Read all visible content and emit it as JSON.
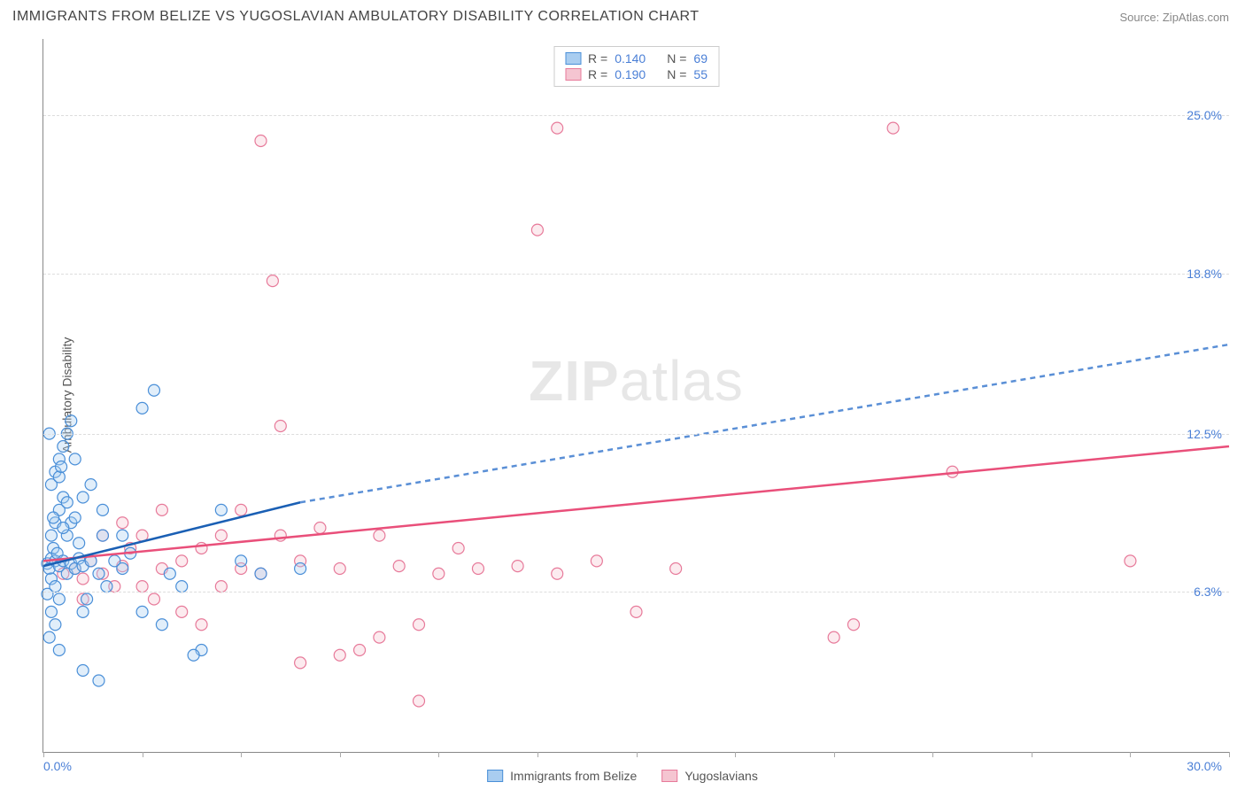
{
  "header": {
    "title": "IMMIGRANTS FROM BELIZE VS YUGOSLAVIAN AMBULATORY DISABILITY CORRELATION CHART",
    "source": "Source: ZipAtlas.com"
  },
  "chart": {
    "type": "scatter",
    "y_axis_label": "Ambulatory Disability",
    "watermark_bold": "ZIP",
    "watermark_light": "atlas",
    "background_color": "#ffffff",
    "grid_color": "#dddddd",
    "axis_color": "#888888",
    "tick_label_color": "#4a7fd6",
    "xlim": [
      0,
      30
    ],
    "ylim": [
      0,
      28
    ],
    "x_ticks": [
      0,
      2.5,
      5,
      7.5,
      10,
      12.5,
      15,
      17.5,
      20,
      22.5,
      25,
      27.5,
      30
    ],
    "x_tick_labels": {
      "0": "0.0%",
      "30": "30.0%"
    },
    "y_gridlines": [
      6.3,
      12.5,
      18.8,
      25.0
    ],
    "y_tick_labels": [
      "6.3%",
      "12.5%",
      "18.8%",
      "25.0%"
    ],
    "series": {
      "belize": {
        "label": "Immigrants from Belize",
        "fill": "#a9cdf0",
        "stroke": "#4a8fd8",
        "r_value": "0.140",
        "n_value": "69",
        "trend": {
          "solid": [
            [
              0,
              7.3
            ],
            [
              6.5,
              9.8
            ]
          ],
          "dashed": [
            [
              6.5,
              9.8
            ],
            [
              30,
              16.0
            ]
          ],
          "stroke": "#1a5fb4",
          "dash_stroke": "#5a8fd6"
        },
        "points": [
          [
            0.1,
            7.4
          ],
          [
            0.2,
            7.6
          ],
          [
            0.15,
            7.2
          ],
          [
            0.3,
            7.5
          ],
          [
            0.25,
            8.0
          ],
          [
            0.4,
            7.3
          ],
          [
            0.35,
            7.8
          ],
          [
            0.5,
            7.5
          ],
          [
            0.2,
            6.8
          ],
          [
            0.3,
            6.5
          ],
          [
            0.1,
            6.2
          ],
          [
            0.4,
            6.0
          ],
          [
            0.6,
            7.0
          ],
          [
            0.7,
            7.4
          ],
          [
            0.8,
            7.2
          ],
          [
            0.9,
            7.6
          ],
          [
            0.2,
            8.5
          ],
          [
            0.3,
            9.0
          ],
          [
            0.4,
            9.5
          ],
          [
            0.5,
            10.0
          ],
          [
            0.2,
            10.5
          ],
          [
            0.3,
            11.0
          ],
          [
            0.4,
            11.5
          ],
          [
            0.5,
            12.0
          ],
          [
            0.15,
            12.5
          ],
          [
            0.6,
            8.5
          ],
          [
            0.7,
            9.0
          ],
          [
            0.8,
            9.2
          ],
          [
            0.2,
            5.5
          ],
          [
            0.3,
            5.0
          ],
          [
            0.15,
            4.5
          ],
          [
            0.4,
            4.0
          ],
          [
            1.0,
            7.3
          ],
          [
            1.2,
            7.5
          ],
          [
            1.4,
            7.0
          ],
          [
            1.5,
            8.5
          ],
          [
            1.8,
            7.5
          ],
          [
            1.6,
            6.5
          ],
          [
            2.0,
            7.2
          ],
          [
            2.2,
            7.8
          ],
          [
            2.5,
            13.5
          ],
          [
            2.8,
            14.2
          ],
          [
            1.0,
            10.0
          ],
          [
            1.2,
            10.5
          ],
          [
            1.0,
            3.2
          ],
          [
            1.4,
            2.8
          ],
          [
            1.1,
            6.0
          ],
          [
            1.0,
            5.5
          ],
          [
            0.6,
            12.5
          ],
          [
            0.7,
            13.0
          ],
          [
            3.2,
            7.0
          ],
          [
            3.5,
            6.5
          ],
          [
            4.5,
            9.5
          ],
          [
            5.0,
            7.5
          ],
          [
            5.5,
            7.0
          ],
          [
            4.0,
            4.0
          ],
          [
            2.5,
            5.5
          ],
          [
            3.0,
            5.0
          ],
          [
            6.5,
            7.2
          ],
          [
            0.5,
            8.8
          ],
          [
            0.8,
            11.5
          ],
          [
            0.4,
            10.8
          ],
          [
            0.6,
            9.8
          ],
          [
            1.5,
            9.5
          ],
          [
            0.9,
            8.2
          ],
          [
            0.25,
            9.2
          ],
          [
            0.45,
            11.2
          ],
          [
            2.0,
            8.5
          ],
          [
            3.8,
            3.8
          ]
        ]
      },
      "yugo": {
        "label": "Yugoslavians",
        "fill": "#f5c5d1",
        "stroke": "#e77a9a",
        "r_value": "0.190",
        "n_value": "55",
        "trend": {
          "solid": [
            [
              0,
              7.5
            ],
            [
              30,
              12.0
            ]
          ],
          "stroke": "#e94f7a"
        },
        "points": [
          [
            0.5,
            7.0
          ],
          [
            0.8,
            7.2
          ],
          [
            1.0,
            6.8
          ],
          [
            1.2,
            7.5
          ],
          [
            1.5,
            7.0
          ],
          [
            1.8,
            6.5
          ],
          [
            2.0,
            7.3
          ],
          [
            2.2,
            8.0
          ],
          [
            2.5,
            8.5
          ],
          [
            2.8,
            6.0
          ],
          [
            3.0,
            7.2
          ],
          [
            3.5,
            7.5
          ],
          [
            4.0,
            8.0
          ],
          [
            4.5,
            6.5
          ],
          [
            5.0,
            7.2
          ],
          [
            5.5,
            7.0
          ],
          [
            6.0,
            8.5
          ],
          [
            6.5,
            7.5
          ],
          [
            7.0,
            8.8
          ],
          [
            7.5,
            7.2
          ],
          [
            8.0,
            4.0
          ],
          [
            8.5,
            8.5
          ],
          [
            9.0,
            7.3
          ],
          [
            9.5,
            5.0
          ],
          [
            10.0,
            7.0
          ],
          [
            10.5,
            8.0
          ],
          [
            11.0,
            7.2
          ],
          [
            12.0,
            7.3
          ],
          [
            13.0,
            7.0
          ],
          [
            14.0,
            7.5
          ],
          [
            15.0,
            5.5
          ],
          [
            16.0,
            7.2
          ],
          [
            9.5,
            2.0
          ],
          [
            12.5,
            20.5
          ],
          [
            13.0,
            24.5
          ],
          [
            5.5,
            24.0
          ],
          [
            5.8,
            18.5
          ],
          [
            6.0,
            12.8
          ],
          [
            7.5,
            3.8
          ],
          [
            4.0,
            5.0
          ],
          [
            3.5,
            5.5
          ],
          [
            6.5,
            3.5
          ],
          [
            1.5,
            8.5
          ],
          [
            2.0,
            9.0
          ],
          [
            5.0,
            9.5
          ],
          [
            21.5,
            24.5
          ],
          [
            20.0,
            4.5
          ],
          [
            20.5,
            5.0
          ],
          [
            23.0,
            11.0
          ],
          [
            27.5,
            7.5
          ],
          [
            3.0,
            9.5
          ],
          [
            4.5,
            8.5
          ],
          [
            8.5,
            4.5
          ],
          [
            2.5,
            6.5
          ],
          [
            1.0,
            6.0
          ]
        ]
      }
    },
    "legend_top_prefix_r": "R =",
    "legend_top_prefix_n": "N ="
  }
}
